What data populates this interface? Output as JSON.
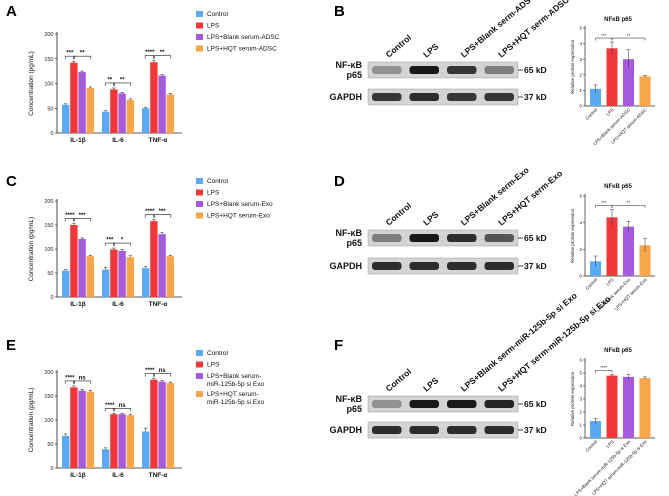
{
  "colors": {
    "control": "#5aa9f2",
    "lps": "#f0383a",
    "blank": "#a55bdc",
    "hqt": "#f7a64a"
  },
  "chart_data": [
    {
      "panel": "A",
      "type": "bar",
      "ylabel": "Concentration (pg/mL)",
      "ylim": [
        0,
        200
      ],
      "yticks": [
        "0",
        "50",
        "100",
        "150",
        "200"
      ],
      "categories": [
        "IL-1β",
        "IL-6",
        "TNF-α"
      ],
      "series": [
        {
          "name": "Control",
          "values": [
            57,
            43,
            50
          ],
          "err": [
            2,
            2,
            2
          ]
        },
        {
          "name": "LPS",
          "values": [
            142,
            88,
            143
          ],
          "err": [
            3,
            3,
            3
          ]
        },
        {
          "name": "LPS+Blank serum-ADSC",
          "values": [
            123,
            80,
            116
          ],
          "err": [
            2,
            2,
            2
          ]
        },
        {
          "name": "LPS+HQT serum-ADSC",
          "values": [
            91,
            67,
            78
          ],
          "err": [
            2,
            2,
            2
          ]
        }
      ],
      "sig": [
        [
          "***",
          "**"
        ],
        [
          "**",
          "**"
        ],
        [
          "****",
          "**"
        ]
      ]
    },
    {
      "panel": "C",
      "type": "bar",
      "ylabel": "Concentration (pg/mL)",
      "ylim": [
        0,
        200
      ],
      "yticks": [
        "0",
        "50",
        "100",
        "150",
        "200"
      ],
      "categories": [
        "IL-1β",
        "IL-6",
        "TNF-α"
      ],
      "series": [
        {
          "name": "Control",
          "values": [
            55,
            57,
            60
          ],
          "err": [
            2,
            5,
            3
          ]
        },
        {
          "name": "LPS",
          "values": [
            150,
            99,
            158
          ],
          "err": [
            3,
            3,
            3
          ]
        },
        {
          "name": "LPS+Blank serum-Exo",
          "values": [
            121,
            96,
            131
          ],
          "err": [
            2,
            3,
            3
          ]
        },
        {
          "name": "LPS+HQT serum-Exo",
          "values": [
            85,
            83,
            85
          ],
          "err": [
            2,
            3,
            2
          ]
        }
      ],
      "sig": [
        [
          "****",
          "***"
        ],
        [
          "***",
          "*"
        ],
        [
          "****",
          "***"
        ]
      ]
    },
    {
      "panel": "E",
      "type": "bar",
      "ylabel": "Concentration (pg/mL)",
      "ylim": [
        0,
        200
      ],
      "yticks": [
        "0",
        "50",
        "100",
        "150",
        "200"
      ],
      "categories": [
        "IL-1β",
        "IL-6",
        "TNF-α"
      ],
      "series": [
        {
          "name": "Control",
          "values": [
            67,
            39,
            76
          ],
          "err": [
            4,
            3,
            7
          ]
        },
        {
          "name": "LPS",
          "values": [
            168,
            112,
            184
          ],
          "err": [
            3,
            2,
            2
          ]
        },
        {
          "name": "LPS+Blank serum-miR-125b-5p si Exo",
          "values": [
            161,
            112,
            180
          ],
          "err": [
            3,
            2,
            2
          ]
        },
        {
          "name": "LPS+HQT serum-miR-125b-5p si Exo",
          "values": [
            159,
            110,
            177
          ],
          "err": [
            3,
            2,
            2
          ]
        }
      ],
      "sig": [
        [
          "****",
          "ns"
        ],
        [
          "****",
          "ns"
        ],
        [
          "****",
          "ns"
        ]
      ]
    },
    {
      "panel": "B",
      "type": "bar",
      "title": "NFκB p65",
      "ylabel": "Relative protein expression",
      "ylim": [
        0,
        5
      ],
      "yticks": [
        "0",
        "1",
        "2",
        "3",
        "4",
        "5"
      ],
      "categories": [
        "Control",
        "LPS",
        "LPS+Blank serum-ADSC",
        "LPS+HQT serum-ADSC"
      ],
      "values": [
        1.1,
        3.7,
        3.0,
        1.9
      ],
      "err": [
        0.25,
        0.4,
        0.6,
        0.05
      ],
      "sig": [
        "***",
        "**"
      ]
    },
    {
      "panel": "D",
      "type": "bar",
      "title": "NFκB p65",
      "ylabel": "Relative protein expression",
      "ylim": [
        0,
        6
      ],
      "yticks": [
        "0",
        "2",
        "4",
        "6"
      ],
      "categories": [
        "Control",
        "LPS",
        "LPS+Blank serum-Exo",
        "LPS+HQT serum-Exo"
      ],
      "values": [
        1.1,
        4.4,
        3.7,
        2.3
      ],
      "err": [
        0.4,
        0.6,
        0.4,
        0.5
      ],
      "sig": [
        "***",
        "**"
      ]
    },
    {
      "panel": "F",
      "type": "bar",
      "title": "NFκB p65",
      "ylabel": "Relative protein expression",
      "ylim": [
        0,
        6
      ],
      "yticks": [
        "0",
        "1",
        "2",
        "3",
        "4",
        "5",
        "6"
      ],
      "categories": [
        "Control",
        "LPS",
        "LPS+Blank serum-miR-125b-5p si Exo",
        "LPS+HQT serum-miR-125b-5p si Exo"
      ],
      "values": [
        1.3,
        4.8,
        4.7,
        4.6
      ],
      "err": [
        0.2,
        0.1,
        0.2,
        0.1
      ],
      "sig": [
        "****"
      ]
    }
  ],
  "blots": [
    {
      "panel": "B",
      "lanes": [
        "Control",
        "LPS",
        "LPS+Blank serm-ADSC",
        "LPS+HQT serm-ADSC"
      ],
      "rows": [
        "NF-κB p65",
        "GAPDH"
      ],
      "markers": [
        "65 kD",
        "37 kD"
      ]
    },
    {
      "panel": "D",
      "lanes": [
        "Control",
        "LPS",
        "LPS+Blank serm-Exo",
        "LPS+HQT serm-Exo"
      ],
      "rows": [
        "NF-κB p65",
        "GAPDH"
      ],
      "markers": [
        "65 kD",
        "37 kD"
      ]
    },
    {
      "panel": "F",
      "lanes": [
        "Control",
        "LPS",
        "LPS+Blank serm-miR-125b-5p si Exo",
        "LPS+HQT serm-miR-125b-5p si Exo"
      ],
      "rows": [
        "NF-κB p65",
        "GAPDH"
      ],
      "markers": [
        "65 kD",
        "37 kD"
      ]
    }
  ],
  "panel_labels": [
    "A",
    "B",
    "C",
    "D",
    "E",
    "F"
  ]
}
